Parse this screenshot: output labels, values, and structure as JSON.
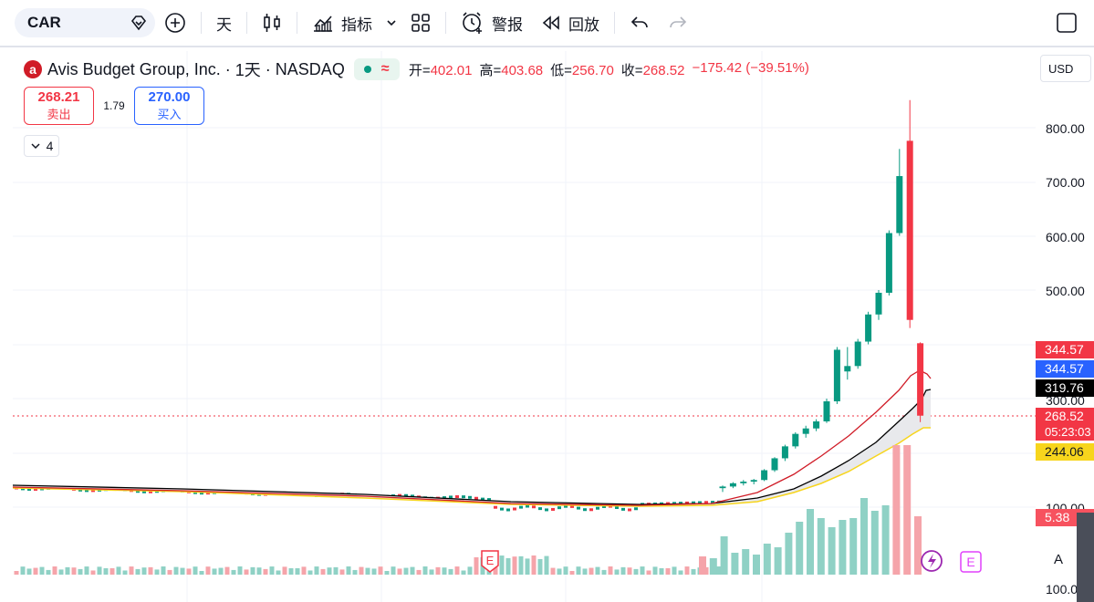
{
  "toolbar": {
    "symbol": "CAR",
    "interval": "天",
    "indicators": "指标",
    "alerts": "警报",
    "replay": "回放"
  },
  "legend": {
    "logo_letter": "a",
    "title": "Avis Budget Group, Inc.",
    "interval": "1天",
    "exchange": "NASDAQ",
    "wave": "≈",
    "open_label": "开=",
    "open": "402.01",
    "high_label": "高=",
    "high": "403.68",
    "low_label": "低=",
    "low": "256.70",
    "close_label": "收=",
    "close": "268.52",
    "change": "−175.42 (−39.51%)"
  },
  "trade": {
    "sell_price": "268.21",
    "sell_label": "卖出",
    "spread": "1.79",
    "buy_price": "270.00",
    "buy_label": "买入"
  },
  "indicator_count": "4",
  "currency": "USD",
  "axis": {
    "ticks": [
      "800.00",
      "700.00",
      "600.00",
      "500.00",
      "300.00",
      "100.00",
      "100.00"
    ]
  },
  "price_tags": [
    {
      "text": "344.57",
      "color": "#f23645"
    },
    {
      "text": "344.57",
      "color": "#2962ff"
    },
    {
      "text": "319.76",
      "color": "#000000"
    },
    {
      "text": "268.52",
      "color": "#f23645"
    },
    {
      "text": "05:23:03",
      "color": "#f23645"
    },
    {
      "text": "244.06",
      "color": "#f7d51d"
    },
    {
      "text": "5.38",
      "color": "#f7525f"
    }
  ],
  "events": {
    "earnings": "E",
    "earnings2": "E"
  },
  "auto_label": "A",
  "colors": {
    "up": "#089981",
    "down": "#f23645",
    "ma_red": "#d01c27",
    "ma_black": "#000000",
    "ma_yellow": "#f7d51d"
  },
  "chart_data": {
    "type": "candlestick",
    "ylim_note": "log-style price scale",
    "recent_candles": [
      {
        "o": 135,
        "h": 140,
        "l": 128,
        "c": 138
      },
      {
        "o": 138,
        "h": 146,
        "l": 135,
        "c": 144
      },
      {
        "o": 144,
        "h": 150,
        "l": 140,
        "c": 147
      },
      {
        "o": 147,
        "h": 152,
        "l": 142,
        "c": 150
      },
      {
        "o": 150,
        "h": 170,
        "l": 148,
        "c": 168
      },
      {
        "o": 168,
        "h": 192,
        "l": 165,
        "c": 190
      },
      {
        "o": 190,
        "h": 215,
        "l": 185,
        "c": 212
      },
      {
        "o": 212,
        "h": 238,
        "l": 208,
        "c": 235
      },
      {
        "o": 235,
        "h": 250,
        "l": 228,
        "c": 245
      },
      {
        "o": 245,
        "h": 262,
        "l": 240,
        "c": 258
      },
      {
        "o": 258,
        "h": 300,
        "l": 255,
        "c": 295
      },
      {
        "o": 295,
        "h": 395,
        "l": 290,
        "c": 390
      },
      {
        "o": 350,
        "h": 395,
        "l": 335,
        "c": 360
      },
      {
        "o": 360,
        "h": 410,
        "l": 355,
        "c": 405
      },
      {
        "o": 405,
        "h": 460,
        "l": 400,
        "c": 455
      },
      {
        "o": 455,
        "h": 500,
        "l": 445,
        "c": 495
      },
      {
        "o": 495,
        "h": 610,
        "l": 490,
        "c": 605
      },
      {
        "o": 605,
        "h": 760,
        "l": 600,
        "c": 710
      },
      {
        "o": 775,
        "h": 850,
        "l": 430,
        "c": 445
      },
      {
        "o": 402.01,
        "h": 403.68,
        "l": 256.7,
        "c": 268.52
      }
    ]
  }
}
